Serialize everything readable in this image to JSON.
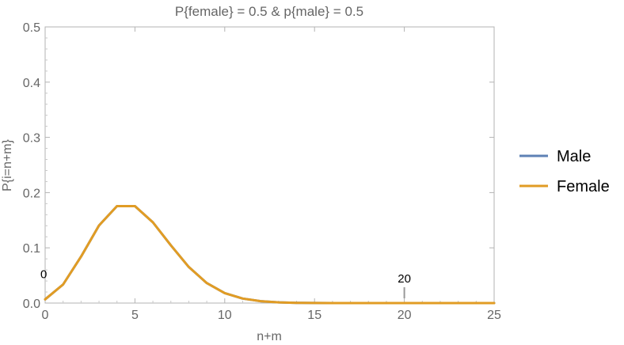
{
  "chart_data": {
    "type": "line",
    "title": "P{female} = 0.5 & p{male} = 0.5",
    "xlabel": "n+m",
    "ylabel": "P{i=n+m}",
    "xlim": [
      0,
      25
    ],
    "ylim": [
      0,
      0.5
    ],
    "x_ticks": [
      0,
      5,
      10,
      15,
      20,
      25
    ],
    "y_ticks": [
      0.0,
      0.1,
      0.2,
      0.3,
      0.4,
      0.5
    ],
    "x_tick_labels": [
      "0",
      "5",
      "10",
      "15",
      "20",
      "25"
    ],
    "y_tick_labels": [
      "0.0",
      "0.1",
      "0.2",
      "0.3",
      "0.4",
      "0.5"
    ],
    "grid": false,
    "legend_position": "right",
    "series": [
      {
        "name": "Male",
        "color": "#5e81b5",
        "x": [
          0,
          1,
          2,
          3,
          4,
          5,
          6,
          7,
          8,
          9,
          10,
          11,
          12,
          13,
          14,
          15,
          16,
          17,
          18,
          19,
          20,
          21,
          22,
          23,
          24,
          25
        ],
        "y": [
          0.0067,
          0.0337,
          0.0842,
          0.1404,
          0.1755,
          0.1755,
          0.1462,
          0.1044,
          0.0653,
          0.0363,
          0.0181,
          0.0082,
          0.0034,
          0.0013,
          0.0005,
          0.0002,
          0.0,
          0.0,
          0.0,
          0.0,
          0.0,
          0.0,
          0.0,
          0.0,
          0.0,
          0.0
        ]
      },
      {
        "name": "Female",
        "color": "#e19c24",
        "x": [
          0,
          1,
          2,
          3,
          4,
          5,
          6,
          7,
          8,
          9,
          10,
          11,
          12,
          13,
          14,
          15,
          16,
          17,
          18,
          19,
          20,
          21,
          22,
          23,
          24,
          25
        ],
        "y": [
          0.0067,
          0.0337,
          0.0842,
          0.1404,
          0.1755,
          0.1755,
          0.1462,
          0.1044,
          0.0653,
          0.0363,
          0.0181,
          0.0082,
          0.0034,
          0.0013,
          0.0005,
          0.0002,
          0.0,
          0.0,
          0.0,
          0.0,
          0.0,
          0.0,
          0.0,
          0.0,
          0.0,
          0.0
        ]
      }
    ],
    "annotations": [
      {
        "label": "0",
        "x": 0,
        "y": 0.052
      },
      {
        "label": "20",
        "x": 20,
        "y": 0.0
      }
    ]
  }
}
